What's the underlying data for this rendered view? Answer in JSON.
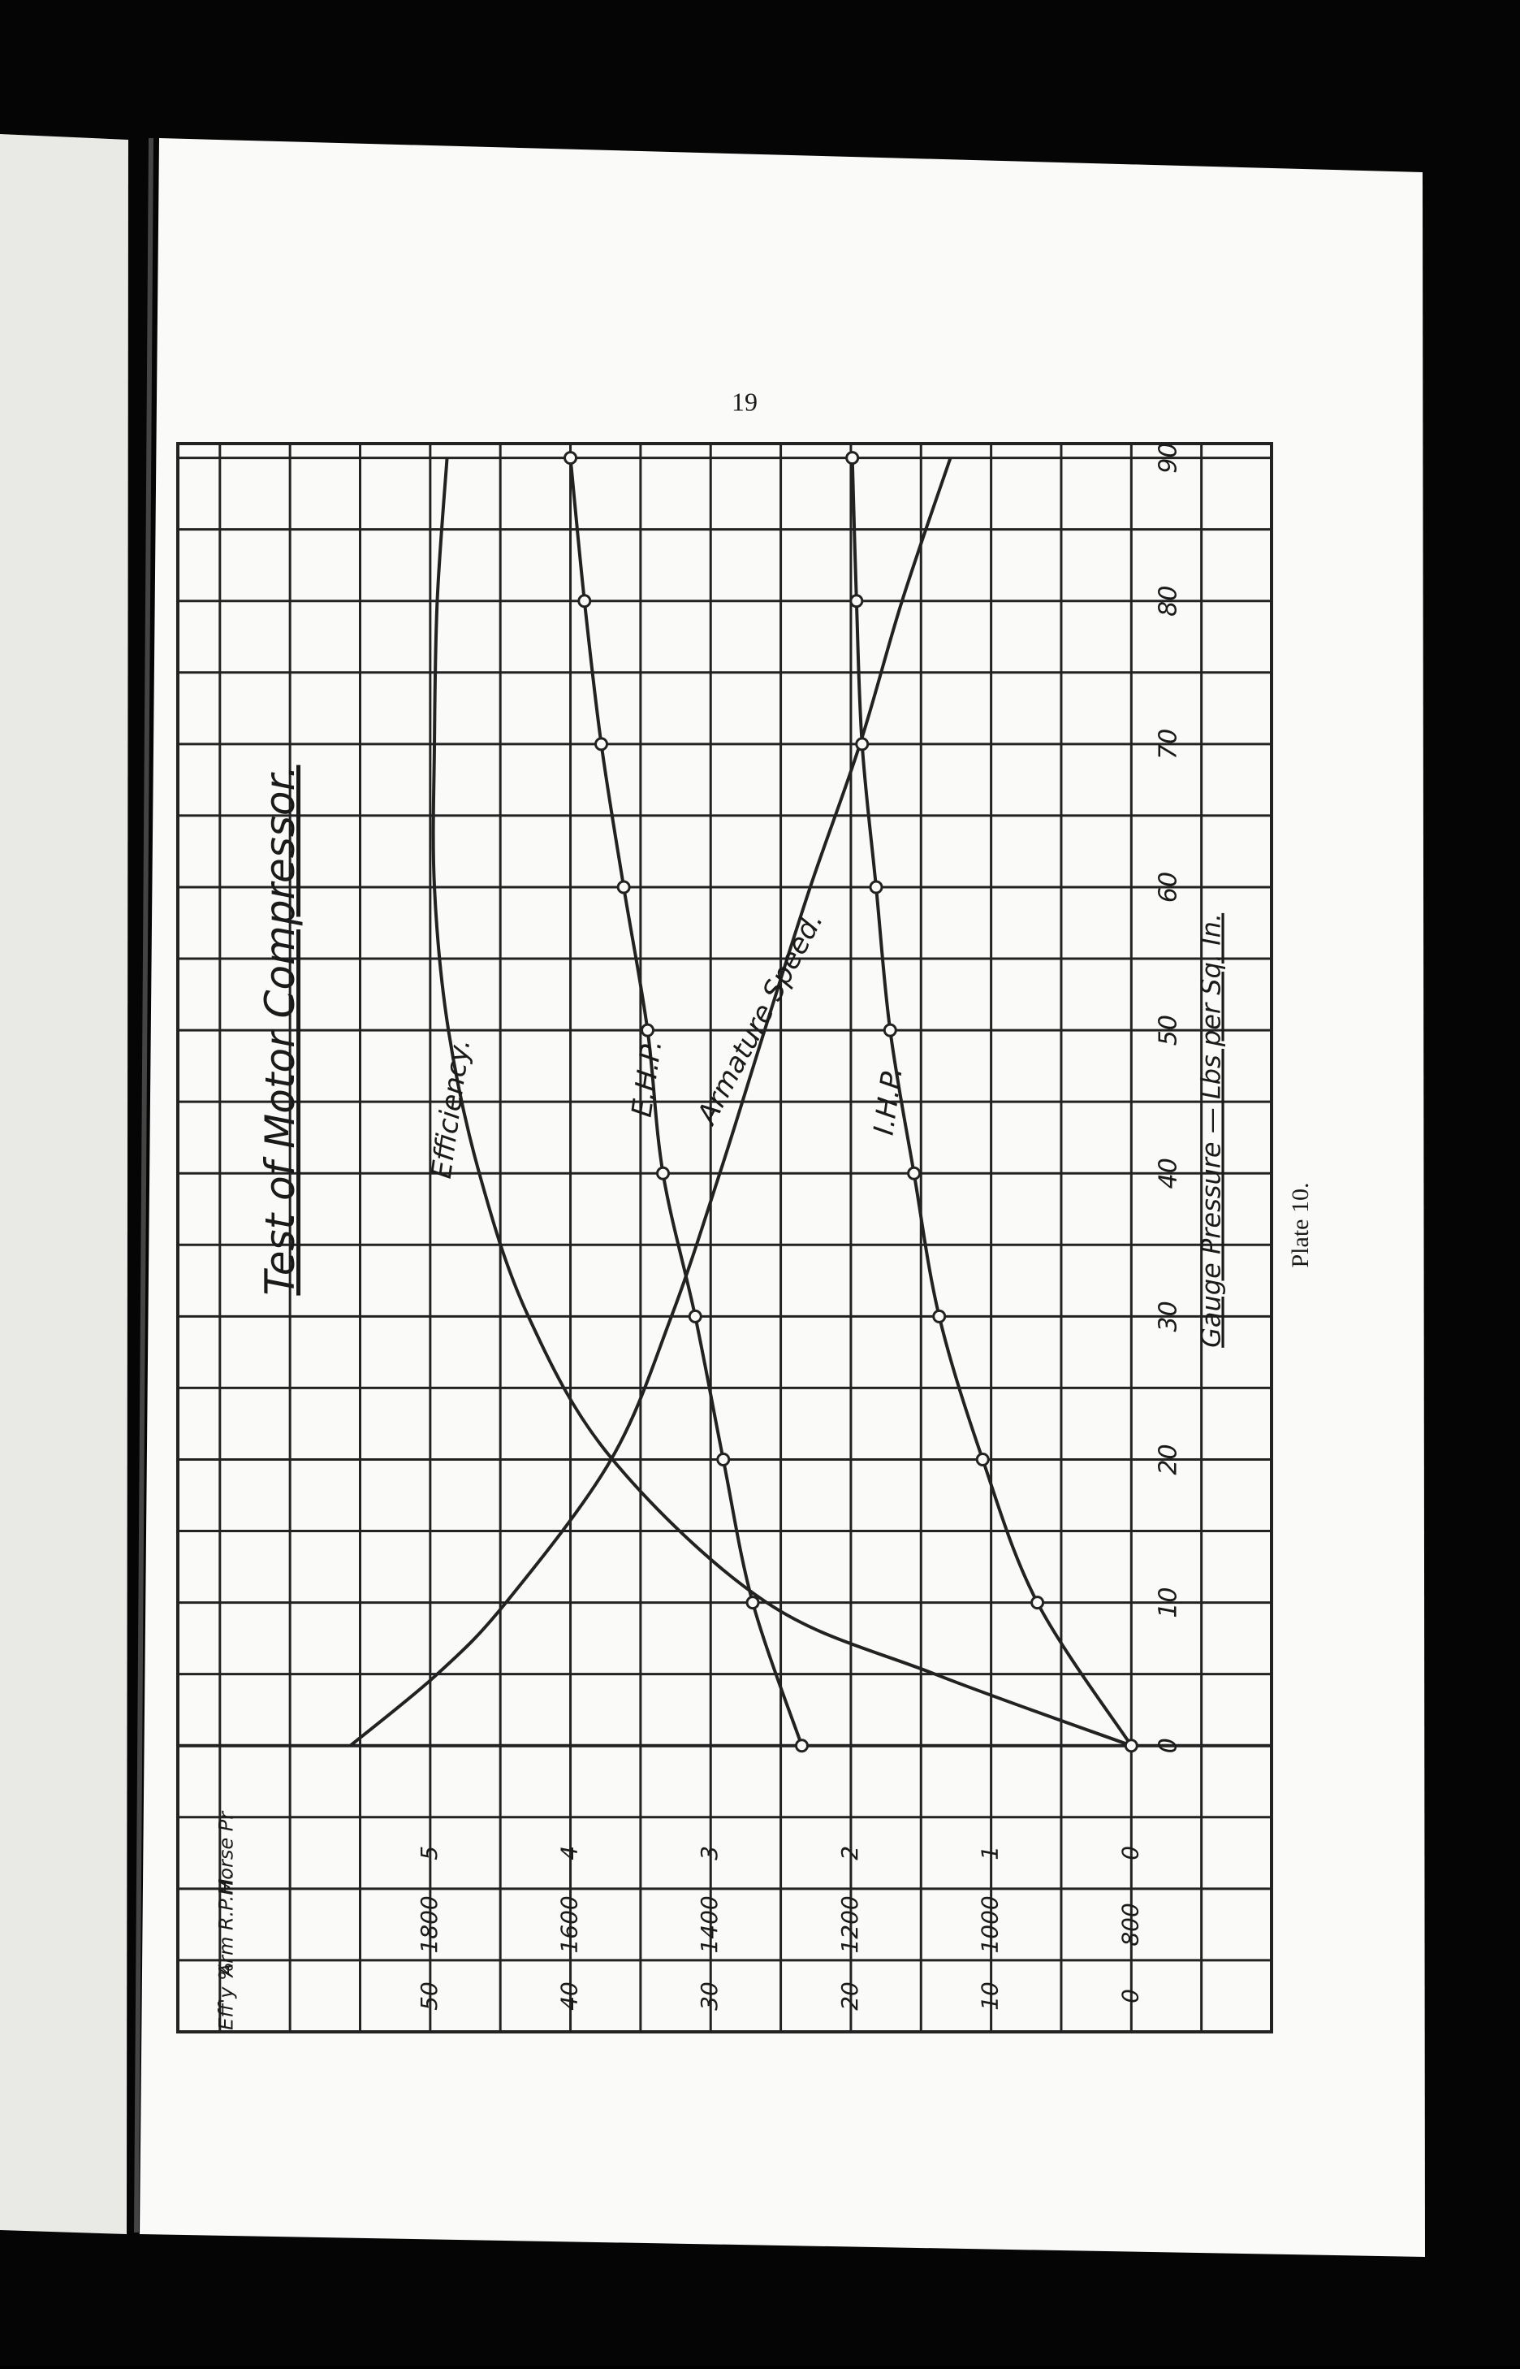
{
  "page_number": "19",
  "caption": "Plate 10.",
  "chart_data": {
    "type": "line",
    "title": "Test of Motor Compressor.",
    "x_label": "Gauge Pressure — Lbs per Sq. In.",
    "y_label": "Horse Pr",
    "y2_label": "Arm R.P.M.",
    "y3_label": "Eff'y %",
    "xlim": [
      -20,
      91
    ],
    "xticks": [
      0,
      10,
      20,
      30,
      40,
      50,
      60,
      70,
      80,
      90
    ],
    "ylim": [
      -1,
      6.8
    ],
    "yticks": [
      0,
      1,
      2,
      3,
      4,
      5
    ],
    "y2lim": [
      600,
      2160
    ],
    "y2ticks": [
      800,
      1000,
      1200,
      1400,
      1600,
      1800
    ],
    "y3lim": [
      -10,
      68
    ],
    "y3ticks": [
      0,
      10,
      20,
      30,
      40,
      50
    ],
    "grid": true,
    "orientation": "rotated",
    "series": [
      {
        "name": "Efficiency.",
        "axis": "y3",
        "color": "#222222",
        "markers": false,
        "x": [
          0,
          5,
          10,
          20,
          30,
          40,
          50,
          60,
          70,
          80,
          90
        ],
        "values": [
          0,
          14,
          26,
          37,
          43,
          46.5,
          48.7,
          49.7,
          49.7,
          49.5,
          48.8
        ]
      },
      {
        "name": "E.H.P.",
        "axis": "y",
        "color": "#222222",
        "markers": true,
        "x": [
          0,
          10,
          20,
          30,
          40,
          50,
          60,
          70,
          80,
          90
        ],
        "values": [
          2.35,
          2.7,
          2.91,
          3.11,
          3.34,
          3.45,
          3.62,
          3.78,
          3.9,
          4.0
        ]
      },
      {
        "name": "Armature Speed.",
        "axis": "y2",
        "color": "#222222",
        "markers": false,
        "x": [
          0,
          5,
          10,
          20,
          30,
          40,
          50,
          60,
          70,
          80,
          90
        ],
        "values": [
          1914,
          1790,
          1692,
          1542,
          1456,
          1387,
          1323,
          1258,
          1187,
          1127,
          1058
        ]
      },
      {
        "name": "I.H.P.",
        "axis": "y",
        "color": "#222222",
        "markers": true,
        "x": [
          0,
          10,
          20,
          30,
          40,
          50,
          60,
          70,
          80,
          90
        ],
        "values": [
          0,
          0.67,
          1.06,
          1.37,
          1.55,
          1.72,
          1.82,
          1.92,
          1.96,
          1.99
        ]
      }
    ]
  }
}
